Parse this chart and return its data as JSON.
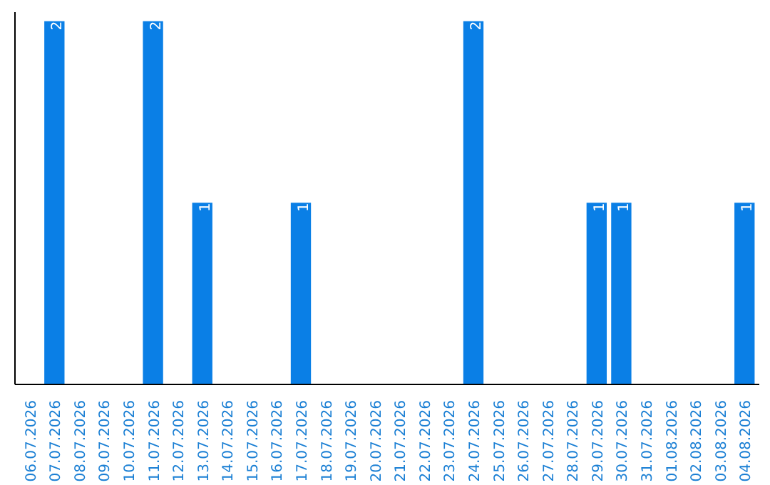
{
  "chart_data": {
    "type": "bar",
    "categories": [
      "06.07.2026",
      "07.07.2026",
      "08.07.2026",
      "09.07.2026",
      "10.07.2026",
      "11.07.2026",
      "12.07.2026",
      "13.07.2026",
      "14.07.2026",
      "15.07.2026",
      "16.07.2026",
      "17.07.2026",
      "18.07.2026",
      "19.07.2026",
      "20.07.2026",
      "21.07.2026",
      "22.07.2026",
      "23.07.2026",
      "24.07.2026",
      "25.07.2026",
      "26.07.2026",
      "27.07.2026",
      "28.07.2026",
      "29.07.2026",
      "30.07.2026",
      "31.07.2026",
      "01.08.2026",
      "02.08.2026",
      "03.08.2026",
      "04.08.2026"
    ],
    "series": [
      {
        "color": "#0a7fe6",
        "values": [
          null,
          2,
          null,
          null,
          null,
          2,
          null,
          1,
          null,
          null,
          null,
          1,
          null,
          null,
          null,
          null,
          null,
          null,
          2,
          null,
          null,
          null,
          null,
          1,
          1,
          null,
          null,
          null,
          null,
          1
        ]
      }
    ],
    "data_labels": true,
    "tick_labels": "x",
    "grid": false
  }
}
